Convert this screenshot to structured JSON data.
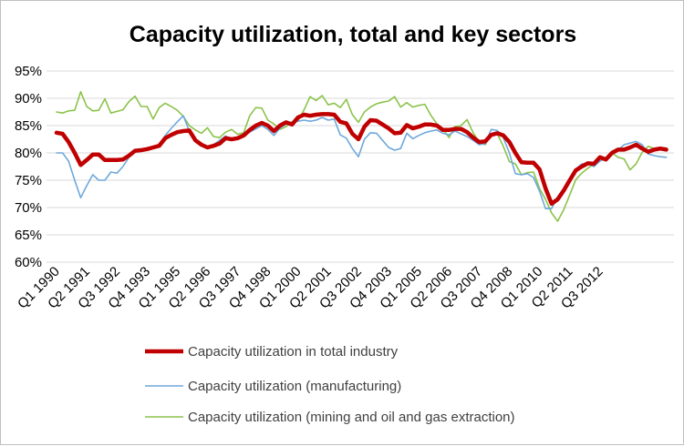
{
  "chart_data": {
    "type": "line",
    "title": "Capacity utilization, total and key sectors",
    "xlabel": "",
    "ylabel": "",
    "ylim": [
      60,
      95
    ],
    "ytick_step": 5,
    "ytick_labels": [
      "60%",
      "65%",
      "70%",
      "75%",
      "80%",
      "85%",
      "90%",
      "95%"
    ],
    "xtick_labels": [
      "Q1 1990",
      "Q2 1991",
      "Q3 1992",
      "Q4 1993",
      "Q1 1995",
      "Q2 1996",
      "Q3 1997",
      "Q4 1998",
      "Q1 2000",
      "Q2 2001",
      "Q3 2002",
      "Q4 2003",
      "Q1 2005",
      "Q2 2006",
      "Q3 2007",
      "Q4 2008",
      "Q1 2010",
      "Q2 2011",
      "Q3 2012"
    ],
    "xtick_every": 5,
    "grid": "horizontal",
    "legend_position": "bottom",
    "series": [
      {
        "name": "Capacity utilization in total industry",
        "color": "#c00000",
        "values": [
          83.7,
          83.5,
          82,
          80,
          77.8,
          78.7,
          79.7,
          79.7,
          78.7,
          78.7,
          78.7,
          78.8,
          79.5,
          80.4,
          80.5,
          80.7,
          81,
          81.3,
          82.7,
          83.3,
          83.8,
          84,
          84.1,
          82.3,
          81.5,
          81,
          81.3,
          81.7,
          82.7,
          82.5,
          82.7,
          83.2,
          84.2,
          85,
          85.5,
          85,
          84,
          85,
          85.6,
          85.2,
          86.5,
          87,
          86.8,
          87,
          87.1,
          87.1,
          87,
          85.7,
          85.4,
          83.5,
          82.5,
          84.8,
          86,
          85.9,
          85.2,
          84.5,
          83.6,
          83.7,
          85.1,
          84.5,
          84.8,
          85.2,
          85.2,
          85,
          84.2,
          84.2,
          84.4,
          84.4,
          83.8,
          82.8,
          82,
          82.1,
          83.3,
          83.6,
          83.2,
          82,
          80,
          78.3,
          78.2,
          78.2,
          77,
          73.5,
          70.7,
          71.5,
          73.1,
          75,
          76.8,
          77.5,
          78.1,
          78,
          79.2,
          78.8,
          80,
          80.6,
          80.6,
          81,
          81.5,
          80.8,
          80.2,
          80.6,
          80.8,
          80.6
        ]
      },
      {
        "name": "Capacity utilization (manufacturing)",
        "color": "#6fa8dc",
        "values": [
          80,
          80,
          78.5,
          75,
          71.8,
          74,
          76,
          75,
          75,
          76.5,
          76.3,
          77.5,
          79.2,
          80.2,
          80.5,
          80.6,
          81,
          81.5,
          83.2,
          84.5,
          85.7,
          86.8,
          84,
          82.3,
          81.5,
          81,
          81.5,
          82.3,
          83.1,
          82.5,
          82.7,
          83.1,
          83.8,
          84.4,
          85,
          84.3,
          83.2,
          84.5,
          85.3,
          85.6,
          85.8,
          86,
          85.8,
          86,
          86.5,
          86,
          86.2,
          83.3,
          82.7,
          80.8,
          79.3,
          82.5,
          83.7,
          83.6,
          82.3,
          81,
          80.5,
          80.8,
          83.6,
          82.6,
          83.2,
          83.7,
          84,
          84.2,
          83.6,
          83.3,
          84,
          83.5,
          83,
          82.3,
          81.5,
          81.7,
          84.3,
          84.1,
          82.8,
          80,
          76.2,
          76,
          76.2,
          75.5,
          73,
          69.8,
          69.8,
          72,
          73.5,
          75.2,
          77,
          78,
          78,
          77.5,
          78.5,
          79,
          80,
          80.5,
          81.5,
          81.8,
          82.1,
          81.5,
          79.8,
          79.5,
          79.3,
          79.2
        ]
      },
      {
        "name": "Capacity utilization (mining and oil and gas extraction)",
        "color": "#8bc34a",
        "values": [
          87.5,
          87.3,
          87.7,
          87.8,
          91.2,
          88.5,
          87.7,
          87.8,
          89.9,
          87.3,
          87.6,
          87.9,
          89.4,
          90.4,
          88.5,
          88.5,
          86.2,
          88.3,
          89.1,
          88.5,
          87.8,
          86.7,
          85,
          84.2,
          83.6,
          84.6,
          83,
          82.8,
          83.8,
          84.3,
          83.4,
          83.7,
          86.8,
          88.3,
          88.2,
          86,
          85.3,
          84.3,
          84.8,
          85.7,
          85.9,
          87.9,
          90.3,
          89.6,
          90.5,
          88.8,
          89.1,
          88.3,
          89.8,
          87,
          85.6,
          87.5,
          88.4,
          89,
          89.3,
          89.5,
          90.3,
          88.4,
          89.2,
          88.4,
          88.7,
          88.9,
          86.9,
          85.3,
          84.4,
          82.8,
          84.8,
          85,
          86.1,
          83.7,
          82,
          81.5,
          83.5,
          83.5,
          81.2,
          78.4,
          78,
          76,
          76.4,
          76.5,
          73.5,
          71.5,
          69,
          67.5,
          69.6,
          72.3,
          75.1,
          76.3,
          77.2,
          78,
          79.1,
          78.8,
          80,
          79.2,
          78.9,
          76.9,
          78,
          80.1,
          81.2,
          80.8,
          81,
          80.9
        ]
      }
    ]
  }
}
